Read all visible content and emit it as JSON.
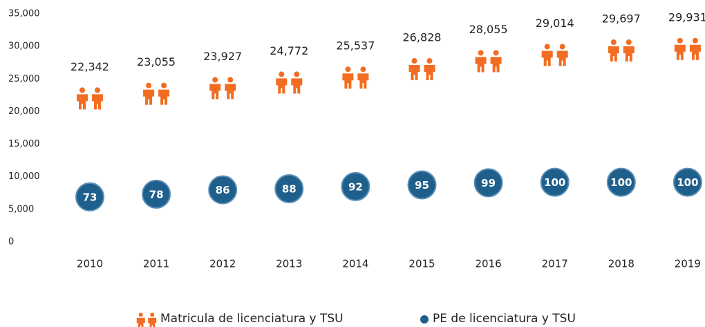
{
  "chart_data": {
    "type": "pictogram",
    "categories": [
      "2010",
      "2011",
      "2012",
      "2013",
      "2014",
      "2015",
      "2016",
      "2017",
      "2018",
      "2019"
    ],
    "series": [
      {
        "name": "Matricula de licenciatura y TSU",
        "color": "#f26d21",
        "values": [
          22342,
          23055,
          23927,
          24772,
          25537,
          26828,
          28055,
          29014,
          29697,
          29931
        ],
        "value_labels": [
          "22,342",
          "23,055",
          "23,927",
          "24,772",
          "25,537",
          "26,828",
          "28,055",
          "29,014",
          "29,697",
          "29,931"
        ]
      },
      {
        "name": "PE de licenciatura y TSU",
        "color": "#1f5f8b",
        "axis": "y2",
        "values": [
          73,
          78,
          86,
          88,
          92,
          95,
          99,
          100,
          100,
          100
        ]
      }
    ],
    "ylim": [
      0,
      35000
    ],
    "yticks": [
      0,
      {
        "value": 5000,
        "label": "5,000"
      },
      {
        "value": 10000,
        "label": "10,000"
      },
      {
        "value": 15000,
        "label": "15,000"
      },
      {
        "value": 20000,
        "label": "20,000"
      },
      {
        "value": 25000,
        "label": "25,000"
      },
      {
        "value": 30000,
        "label": "30,000"
      },
      {
        "value": 35000,
        "label": "35,000"
      }
    ],
    "y2lim": [
      -10,
      410
    ],
    "grid": false
  }
}
